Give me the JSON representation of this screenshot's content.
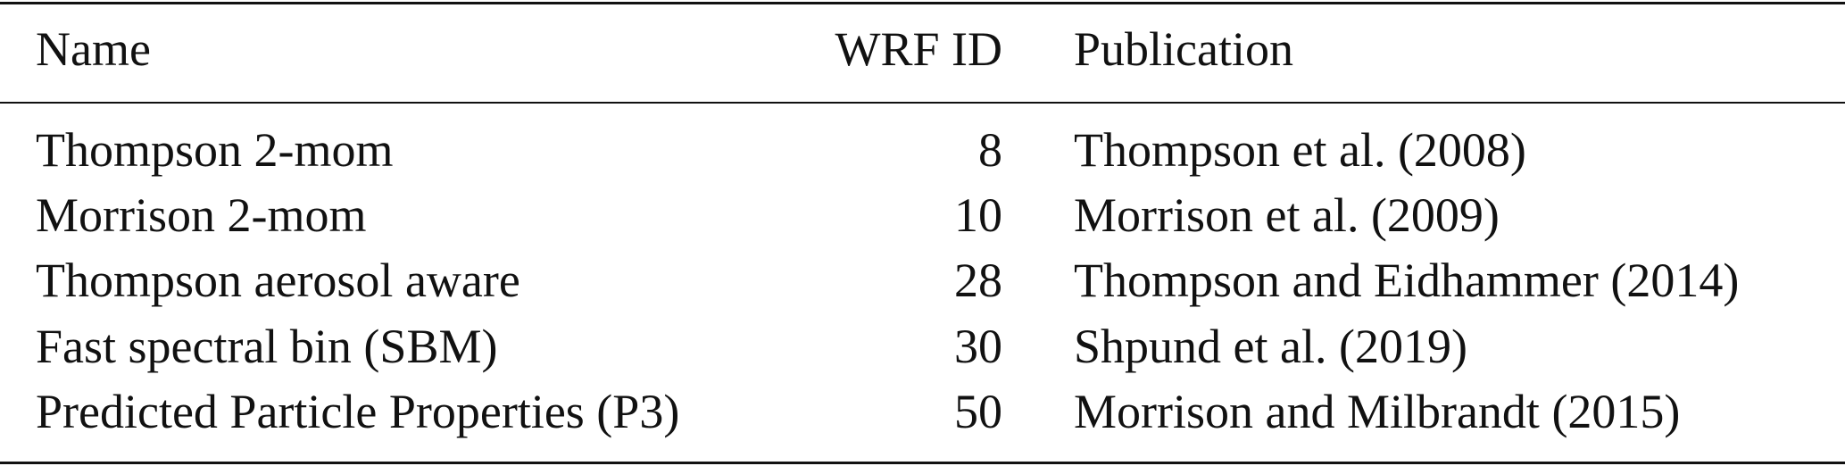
{
  "table": {
    "header": [
      "Name",
      "WRF ID",
      "Publication"
    ],
    "rows": [
      [
        "Thompson 2-mom",
        8,
        "Thompson et al. (2008)"
      ],
      [
        "Morrison 2-mom",
        10,
        "Morrison et al. (2009)"
      ],
      [
        "Thompson aerosol aware",
        28,
        "Thompson and Eidhammer (2014)"
      ],
      [
        "Fast spectral bin (SBM)",
        30,
        "Shpund et al. (2019)"
      ],
      [
        "Predicted Particle Properties (P3)",
        50,
        "Morrison and Milbrandt (2015)"
      ]
    ]
  }
}
